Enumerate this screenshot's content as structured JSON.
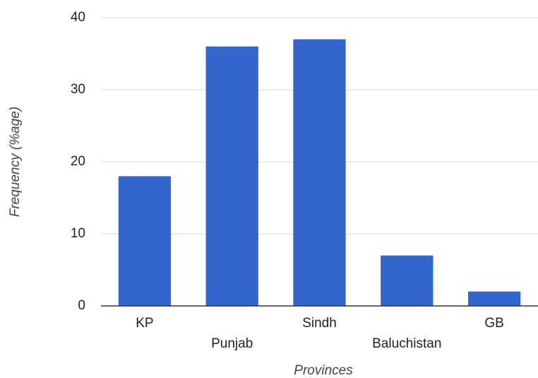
{
  "chart_data": {
    "type": "bar",
    "x_label": "Provinces",
    "y_label": "Frequency (%age)",
    "categories": [
      "KP",
      "Punjab",
      "Sindh",
      "Baluchistan",
      "GB"
    ],
    "values": [
      18,
      36,
      37,
      7,
      2
    ],
    "color": "#3366cc",
    "ylim": [
      0,
      40
    ],
    "yticks": [
      0,
      10,
      20,
      30,
      40
    ],
    "grid": true
  }
}
